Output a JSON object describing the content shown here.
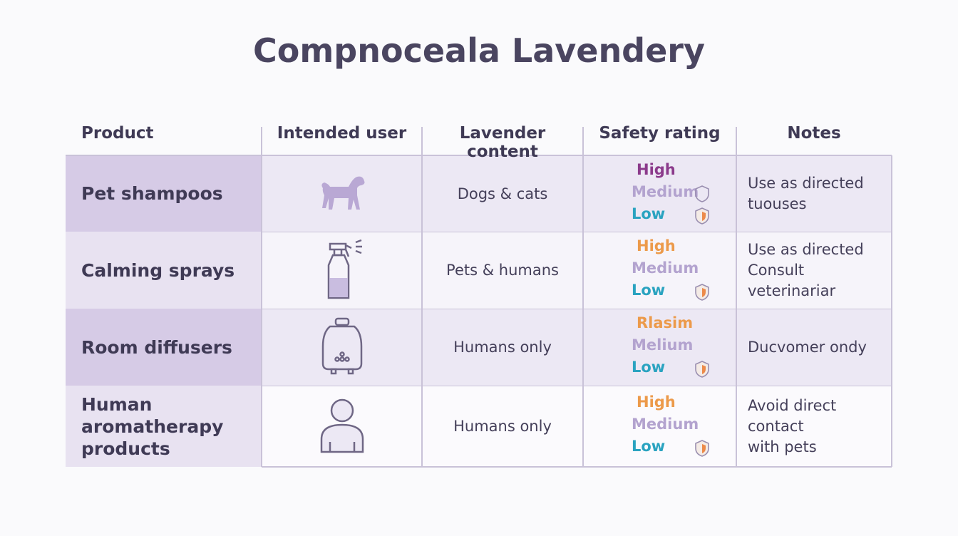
{
  "header": {
    "title": "Compnoceala Lavendery"
  },
  "table": {
    "columns": [
      "Product",
      "Intended user",
      "Lavender content",
      "Safety rating",
      "Notes"
    ],
    "rows": [
      {
        "product": "Pet shampoos",
        "content": "Dogs & cats",
        "safety": [
          "High",
          "Medium",
          "Low"
        ],
        "notes": [
          "Use as directed",
          "tuouses"
        ]
      },
      {
        "product": "Calming sprays",
        "content": "Pets & humans",
        "safety": [
          "High",
          "Medium",
          "Low"
        ],
        "notes": [
          "Use as directed",
          "Consult",
          "veterinariar"
        ]
      },
      {
        "product": "Room diffusers",
        "content": "Humans only",
        "safety": [
          "Rlasim",
          "Melium",
          "Low"
        ],
        "notes": [
          "Ducvomer ondy"
        ]
      },
      {
        "product": "Human aromatherapy products",
        "content": "Humans only",
        "safety": [
          "High",
          "Medium",
          "Low"
        ],
        "notes": [
          "Avoid direct",
          "contact",
          "with pets"
        ]
      }
    ]
  }
}
